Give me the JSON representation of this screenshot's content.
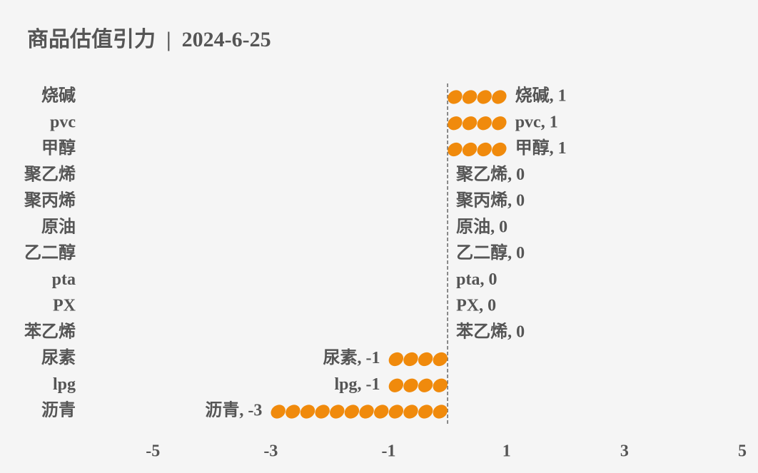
{
  "chart_data": {
    "type": "pictorial-bar",
    "title": "商品估值引力  |  2024-6-25",
    "categories": [
      "烧碱",
      "pvc",
      "甲醇",
      "聚乙烯",
      "聚丙烯",
      "原油",
      "乙二醇",
      "pta",
      "PX",
      "苯乙烯",
      "尿素",
      "lpg",
      "沥青"
    ],
    "values": [
      1,
      1,
      1,
      0,
      0,
      0,
      0,
      0,
      0,
      0,
      -1,
      -1,
      -3
    ],
    "value_labels": [
      "烧碱, 1",
      "pvc, 1",
      "甲醇, 1",
      "聚乙烯, 0",
      "聚丙烯, 0",
      "原油, 0",
      "乙二醇, 0",
      "pta, 0",
      "PX, 0",
      "苯乙烯, 0",
      "尿素, -1",
      "lpg, -1",
      "沥青, -3"
    ],
    "color": "#f08a0c",
    "xlim": [
      -6.25,
      5
    ],
    "xticks": [
      -5,
      -3,
      -1,
      1,
      3,
      5
    ]
  }
}
